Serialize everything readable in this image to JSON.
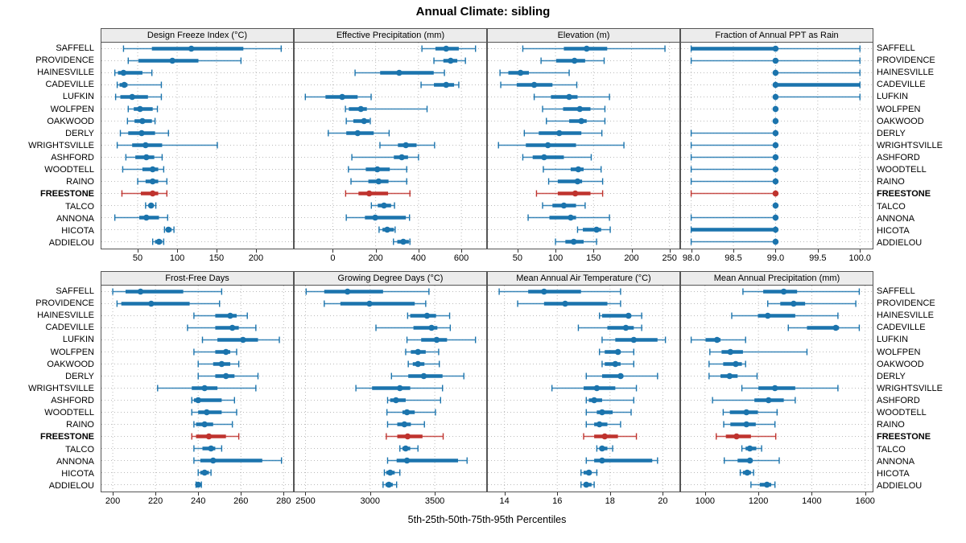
{
  "title": "Annual Climate: sibling",
  "caption": "5th-25th-50th-75th-95th Percentiles",
  "colors": {
    "series": "#1b74ad",
    "highlight": "#bf332e",
    "grid": "#bbbbbb",
    "strip_bg": "#ececec",
    "panel_border": "#555555",
    "text": "#000000"
  },
  "sites": [
    "SAFFELL",
    "PROVIDENCE",
    "HAINESVILLE",
    "CADEVILLE",
    "LUFKIN",
    "WOLFPEN",
    "OAKWOOD",
    "DERLY",
    "WRIGHTSVILLE",
    "ASHFORD",
    "WOODTELL",
    "RAINO",
    "FREESTONE",
    "TALCO",
    "ANNONA",
    "HICOTA",
    "ADDIELOU"
  ],
  "highlight_site": "FREESTONE",
  "chart_data": [
    {
      "type": "scatter",
      "subtype": "horizontal-percentile-intervals",
      "title": "Design Freeze Index (°C)",
      "percentiles": [
        5,
        25,
        50,
        75,
        95
      ],
      "xlim": [
        4,
        247
      ],
      "ticks": [
        50,
        100,
        150,
        200
      ],
      "tick_labels": [
        "50",
        "100",
        "150",
        "200"
      ],
      "grid": "dotted",
      "values": [
        [
          32,
          68,
          118,
          184,
          232
        ],
        [
          38,
          51,
          94,
          127,
          181
        ],
        [
          21,
          25,
          32,
          56,
          68
        ],
        [
          24,
          27,
          33,
          37,
          80
        ],
        [
          22,
          28,
          43,
          63,
          80
        ],
        [
          38,
          45,
          53,
          69,
          75
        ],
        [
          37,
          46,
          56,
          68,
          72
        ],
        [
          28,
          38,
          55,
          72,
          89
        ],
        [
          24,
          43,
          60,
          81,
          151
        ],
        [
          35,
          47,
          61,
          71,
          81
        ],
        [
          31,
          56,
          69,
          76,
          83
        ],
        [
          50,
          60,
          69,
          76,
          87
        ],
        [
          30,
          54,
          69,
          76,
          87
        ],
        [
          60,
          64,
          67,
          70,
          73
        ],
        [
          21,
          52,
          61,
          77,
          88
        ],
        [
          84,
          86,
          89,
          93,
          96
        ],
        [
          69,
          72,
          77,
          81,
          83
        ]
      ]
    },
    {
      "type": "scatter",
      "subtype": "horizontal-percentile-intervals",
      "title": "Effective Precipitation (mm)",
      "percentiles": [
        5,
        25,
        50,
        75,
        95
      ],
      "xlim": [
        -178,
        716
      ],
      "ticks": [
        0,
        200,
        400,
        600
      ],
      "tick_labels": [
        "0",
        "200",
        "400",
        "600"
      ],
      "grid": "dotted",
      "values": [
        [
          416,
          479,
          529,
          588,
          666
        ],
        [
          472,
          516,
          550,
          581,
          619
        ],
        [
          104,
          221,
          310,
          471,
          521
        ],
        [
          412,
          472,
          529,
          566,
          588
        ],
        [
          -128,
          -34,
          44,
          116,
          179
        ],
        [
          59,
          75,
          131,
          159,
          440
        ],
        [
          63,
          96,
          146,
          171,
          175
        ],
        [
          -21,
          63,
          116,
          191,
          263
        ],
        [
          220,
          304,
          341,
          391,
          475
        ],
        [
          89,
          285,
          322,
          351,
          400
        ],
        [
          73,
          154,
          208,
          266,
          345
        ],
        [
          85,
          166,
          214,
          260,
          345
        ],
        [
          60,
          120,
          170,
          258,
          360
        ],
        [
          180,
          210,
          239,
          272,
          288
        ],
        [
          63,
          150,
          198,
          341,
          358
        ],
        [
          216,
          232,
          254,
          285,
          291
        ],
        [
          283,
          301,
          329,
          355,
          360
        ]
      ]
    },
    {
      "type": "scatter",
      "subtype": "horizontal-percentile-intervals",
      "title": "Elevation (m)",
      "percentiles": [
        5,
        25,
        50,
        75,
        95
      ],
      "xlim": [
        11,
        263
      ],
      "ticks": [
        50,
        100,
        150,
        200,
        250
      ],
      "tick_labels": [
        "50",
        "100",
        "150",
        "200",
        "250"
      ],
      "grid": "dotted",
      "values": [
        [
          57,
          111,
          141,
          168,
          244
        ],
        [
          81,
          101,
          125,
          139,
          164
        ],
        [
          27,
          38,
          54,
          65,
          118
        ],
        [
          28,
          49,
          72,
          96,
          128
        ],
        [
          72,
          94,
          118,
          129,
          171
        ],
        [
          83,
          110,
          132,
          146,
          165
        ],
        [
          88,
          118,
          134,
          141,
          165
        ],
        [
          59,
          78,
          105,
          134,
          161
        ],
        [
          25,
          61,
          90,
          127,
          190
        ],
        [
          57,
          70,
          85,
          111,
          147
        ],
        [
          84,
          120,
          130,
          137,
          160
        ],
        [
          91,
          103,
          129,
          135,
          162
        ],
        [
          75,
          103,
          126,
          146,
          162
        ],
        [
          83,
          96,
          111,
          127,
          139
        ],
        [
          64,
          92,
          120,
          127,
          171
        ],
        [
          129,
          136,
          154,
          160,
          172
        ],
        [
          100,
          113,
          124,
          137,
          154
        ]
      ]
    },
    {
      "type": "scatter",
      "subtype": "horizontal-percentile-intervals",
      "title": "Fraction of Annual PPT as Rain",
      "percentiles": [
        5,
        25,
        50,
        75,
        95
      ],
      "xlim": [
        97.88,
        100.15
      ],
      "ticks": [
        98.0,
        98.5,
        99.0,
        99.5,
        100.0
      ],
      "tick_labels": [
        "98.0",
        "98.5",
        "99.0",
        "99.5",
        "100.0"
      ],
      "grid": "dotted",
      "values": [
        [
          98,
          98,
          99,
          99,
          100
        ],
        [
          98,
          99,
          99,
          99,
          100
        ],
        [
          99,
          99,
          99,
          99,
          100
        ],
        [
          99,
          99,
          99,
          100,
          100
        ],
        [
          99,
          99,
          99,
          99,
          100
        ],
        [
          99,
          99,
          99,
          99,
          99
        ],
        [
          99,
          99,
          99,
          99,
          99
        ],
        [
          98,
          99,
          99,
          99,
          99
        ],
        [
          98,
          99,
          99,
          99,
          99
        ],
        [
          98,
          99,
          99,
          99,
          99
        ],
        [
          98,
          99,
          99,
          99,
          99
        ],
        [
          98,
          99,
          99,
          99,
          99
        ],
        [
          98,
          99,
          99,
          99,
          99
        ],
        [
          99,
          99,
          99,
          99,
          99
        ],
        [
          98,
          99,
          99,
          99,
          99
        ],
        [
          98,
          98,
          99,
          99,
          99
        ],
        [
          98,
          99,
          99,
          99,
          99
        ]
      ]
    },
    {
      "type": "scatter",
      "subtype": "horizontal-percentile-intervals",
      "title": "Frost-Free Days",
      "percentiles": [
        5,
        25,
        50,
        75,
        95
      ],
      "xlim": [
        194.7,
        284.4
      ],
      "ticks": [
        200,
        220,
        240,
        260,
        280
      ],
      "tick_labels": [
        "200",
        "220",
        "240",
        "260",
        "280"
      ],
      "grid": "dotted",
      "values": [
        [
          200,
          206,
          213,
          233,
          251
        ],
        [
          202,
          204,
          218,
          236,
          250
        ],
        [
          238,
          248,
          255,
          258,
          263
        ],
        [
          235,
          248,
          256,
          259,
          267
        ],
        [
          242,
          249,
          261,
          268,
          278
        ],
        [
          238,
          248,
          253,
          255,
          258
        ],
        [
          240,
          247,
          251,
          255,
          259
        ],
        [
          240,
          248,
          253,
          257,
          268
        ],
        [
          221,
          237,
          243,
          249,
          267
        ],
        [
          237,
          238,
          240,
          251,
          257
        ],
        [
          237,
          240,
          244,
          251,
          258
        ],
        [
          238,
          239,
          243,
          247,
          256
        ],
        [
          237,
          239,
          245,
          253,
          259
        ],
        [
          238,
          242,
          246,
          248,
          251
        ],
        [
          238,
          241,
          247,
          270,
          279
        ],
        [
          240,
          241,
          243,
          245,
          246
        ],
        [
          239,
          239.5,
          240,
          241,
          241.5
        ]
      ]
    },
    {
      "type": "scatter",
      "subtype": "horizontal-percentile-intervals",
      "title": "Growing Degree Days (°C)",
      "percentiles": [
        5,
        25,
        50,
        75,
        95
      ],
      "xlim": [
        2416,
        3898
      ],
      "ticks": [
        2500,
        3000,
        3500
      ],
      "tick_labels": [
        "2500",
        "3000",
        "3500"
      ],
      "grid": "dotted",
      "values": [
        [
          2505,
          2645,
          2825,
          3100,
          3455
        ],
        [
          2645,
          2770,
          2995,
          3345,
          3430
        ],
        [
          3290,
          3310,
          3440,
          3510,
          3615
        ],
        [
          3045,
          3335,
          3475,
          3520,
          3620
        ],
        [
          3285,
          3395,
          3515,
          3595,
          3815
        ],
        [
          3275,
          3315,
          3370,
          3430,
          3530
        ],
        [
          3295,
          3330,
          3370,
          3420,
          3535
        ],
        [
          3165,
          3295,
          3415,
          3560,
          3725
        ],
        [
          2890,
          3015,
          3230,
          3310,
          3560
        ],
        [
          3135,
          3155,
          3200,
          3275,
          3545
        ],
        [
          3130,
          3250,
          3285,
          3345,
          3505
        ],
        [
          3135,
          3210,
          3265,
          3315,
          3420
        ],
        [
          3125,
          3210,
          3290,
          3405,
          3565
        ],
        [
          3230,
          3250,
          3275,
          3310,
          3370
        ],
        [
          3135,
          3205,
          3285,
          3680,
          3750
        ],
        [
          3110,
          3125,
          3155,
          3190,
          3230
        ],
        [
          3100,
          3120,
          3145,
          3175,
          3205
        ]
      ]
    },
    {
      "type": "scatter",
      "subtype": "horizontal-percentile-intervals",
      "title": "Mean Annual Air Temperature (°C)",
      "percentiles": [
        5,
        25,
        50,
        75,
        95
      ],
      "xlim": [
        13.37,
        20.63
      ],
      "ticks": [
        14,
        16,
        18,
        20
      ],
      "tick_labels": [
        "14",
        "16",
        "18",
        "20"
      ],
      "grid": "dotted",
      "values": [
        [
          13.8,
          14.9,
          15.5,
          16.9,
          18.4
        ],
        [
          14.5,
          15.5,
          16.3,
          17.9,
          18.4
        ],
        [
          17.6,
          17.7,
          18.7,
          18.8,
          19.2
        ],
        [
          16.8,
          17.9,
          18.6,
          18.9,
          19.2
        ],
        [
          17.7,
          18.2,
          18.9,
          19.8,
          20.1
        ],
        [
          17.6,
          17.8,
          18.3,
          18.4,
          18.9
        ],
        [
          17.7,
          17.8,
          18.2,
          18.4,
          18.9
        ],
        [
          17.1,
          17.7,
          18.4,
          18.5,
          19.8
        ],
        [
          15.8,
          17.0,
          17.5,
          18.2,
          19.0
        ],
        [
          17.1,
          17.2,
          17.4,
          17.7,
          18.9
        ],
        [
          17.1,
          17.5,
          17.7,
          18.1,
          18.8
        ],
        [
          17.1,
          17.4,
          17.6,
          17.9,
          18.4
        ],
        [
          17.0,
          17.4,
          17.8,
          18.3,
          19.0
        ],
        [
          17.5,
          17.6,
          17.7,
          17.9,
          18.1
        ],
        [
          17.1,
          17.4,
          17.7,
          19.6,
          19.8
        ],
        [
          16.9,
          17.0,
          17.2,
          17.3,
          17.5
        ],
        [
          16.9,
          17.0,
          17.1,
          17.3,
          17.4
        ]
      ]
    },
    {
      "type": "scatter",
      "subtype": "horizontal-percentile-intervals",
      "title": "Mean Annual Precipitation (mm)",
      "percentiles": [
        5,
        25,
        50,
        75,
        95
      ],
      "xlim": [
        910,
        1628
      ],
      "ticks": [
        1000,
        1200,
        1400,
        1600
      ],
      "tick_labels": [
        "1000",
        "1200",
        "1400",
        "1600"
      ],
      "grid": "dotted",
      "values": [
        [
          1142,
          1218,
          1295,
          1345,
          1578
        ],
        [
          1235,
          1282,
          1332,
          1375,
          1565
        ],
        [
          1100,
          1198,
          1235,
          1338,
          1498
        ],
        [
          1312,
          1382,
          1490,
          1502,
          1578
        ],
        [
          948,
          1002,
          1045,
          1058,
          1152
        ],
        [
          1018,
          1062,
          1095,
          1142,
          1382
        ],
        [
          1015,
          1068,
          1115,
          1138,
          1152
        ],
        [
          1015,
          1058,
          1092,
          1122,
          1195
        ],
        [
          1138,
          1200,
          1262,
          1338,
          1498
        ],
        [
          1028,
          1185,
          1238,
          1295,
          1338
        ],
        [
          1068,
          1093,
          1155,
          1198,
          1270
        ],
        [
          1070,
          1095,
          1155,
          1190,
          1262
        ],
        [
          1042,
          1078,
          1118,
          1172,
          1265
        ],
        [
          1138,
          1152,
          1168,
          1192,
          1212
        ],
        [
          1072,
          1122,
          1168,
          1178,
          1278
        ],
        [
          1132,
          1142,
          1158,
          1172,
          1182
        ],
        [
          1172,
          1205,
          1232,
          1248,
          1262
        ]
      ]
    }
  ]
}
